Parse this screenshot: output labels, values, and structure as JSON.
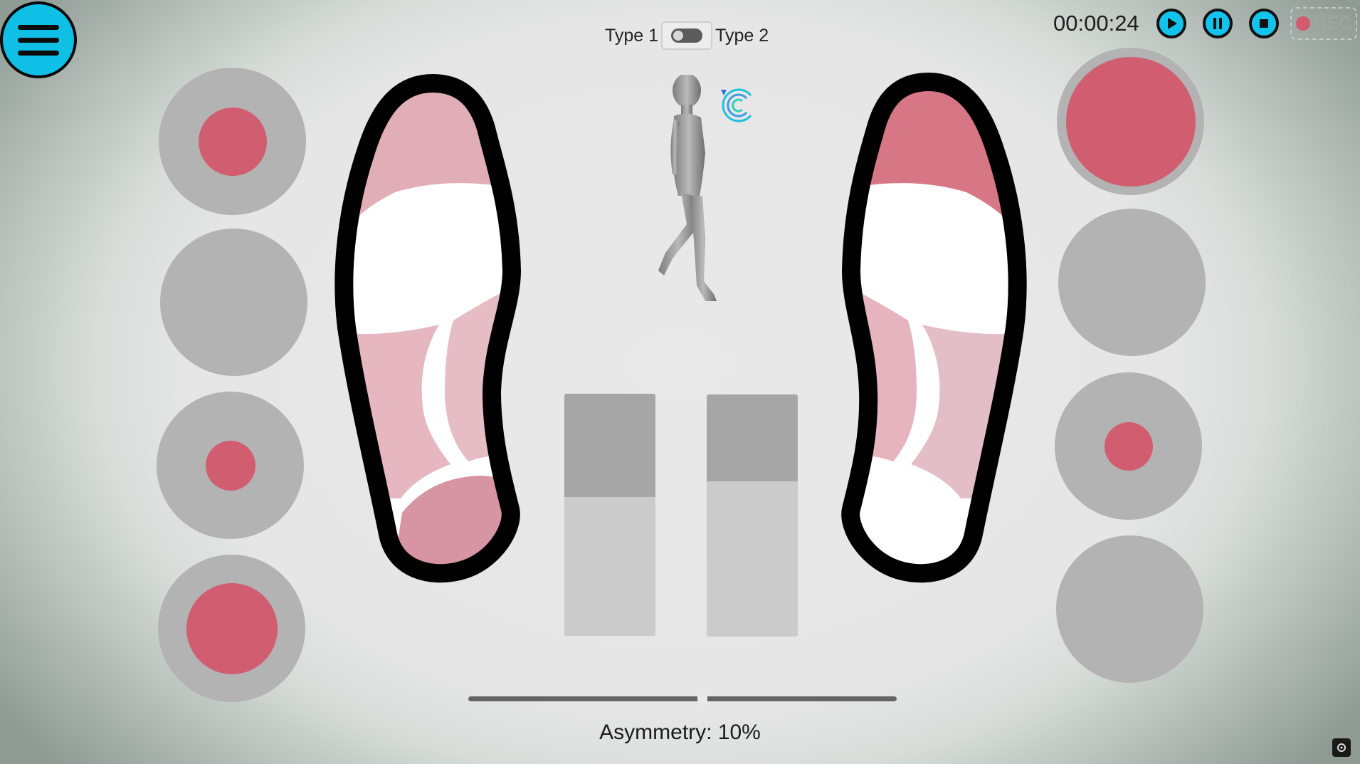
{
  "app": {
    "type_toggle": {
      "left_label": "Type 1",
      "right_label": "Type 2"
    },
    "timer": "00:00:24",
    "rec_label": "REC",
    "asymmetry_text": "Asymmetry: 10%",
    "asymmetry_slider_fraction": 0.55,
    "colors": {
      "accent": "#12c3ec",
      "pressure": "#d05e70",
      "sensor_bg": "#b3b3b3"
    }
  },
  "icons": [
    "menu-icon",
    "play-icon",
    "pause-icon",
    "stop-icon",
    "record-dot-icon",
    "walking-figure",
    "brand-logo",
    "screen-icon"
  ],
  "sensors": {
    "left": [
      0.42,
      0.0,
      0.34,
      0.62
    ],
    "right": [
      1.0,
      0.0,
      0.33,
      0.0
    ]
  },
  "balance_bars": {
    "left_fraction": 0.57,
    "right_fraction": 0.64
  }
}
